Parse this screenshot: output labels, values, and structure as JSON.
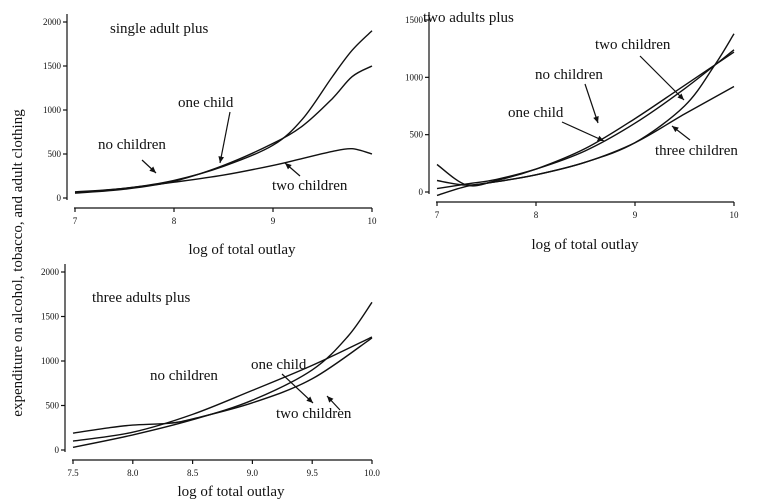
{
  "shared_ylabel": "expenditure on alcohol, tobacco, and adult clothing",
  "chart_data": [
    {
      "type": "line",
      "title": "single adult plus",
      "xlabel": "log of total outlay",
      "ylabel": "expenditure on alcohol, tobacco, and adult clothing",
      "xlim": [
        7,
        10
      ],
      "ylim": [
        0,
        2000
      ],
      "x_ticks": [
        "7",
        "8",
        "9",
        "10"
      ],
      "y_ticks": [
        "0",
        "500",
        "1000",
        "1500",
        "2000"
      ],
      "series": [
        {
          "name": "no children",
          "x": [
            7.0,
            7.5,
            8.0,
            8.5,
            9.0,
            9.3,
            9.6,
            9.8,
            10.0
          ],
          "y": [
            70,
            110,
            200,
            360,
            600,
            900,
            1380,
            1680,
            1900
          ]
        },
        {
          "name": "one child",
          "x": [
            7.0,
            7.5,
            8.0,
            8.5,
            9.0,
            9.3,
            9.6,
            9.8,
            10.0
          ],
          "y": [
            55,
            100,
            190,
            370,
            620,
            820,
            1130,
            1380,
            1500
          ]
        },
        {
          "name": "two children",
          "x": [
            7.0,
            7.5,
            8.0,
            8.5,
            9.0,
            9.3,
            9.6,
            9.8,
            10.0
          ],
          "y": [
            60,
            110,
            180,
            260,
            370,
            450,
            530,
            560,
            500
          ]
        }
      ],
      "annotations": [
        "no children",
        "one child",
        "two children"
      ]
    },
    {
      "type": "line",
      "title": "two adults plus",
      "xlabel": "log of total outlay",
      "xlim": [
        7,
        10
      ],
      "ylim": [
        0,
        1500
      ],
      "x_ticks": [
        "7",
        "8",
        "9",
        "10"
      ],
      "y_ticks": [
        "0",
        "500",
        "1000",
        "1500"
      ],
      "series": [
        {
          "name": "no children",
          "x": [
            7.0,
            7.3,
            7.6,
            8.0,
            8.5,
            9.0,
            9.5,
            10.0
          ],
          "y": [
            30,
            70,
            110,
            200,
            360,
            600,
            900,
            1240
          ]
        },
        {
          "name": "one child",
          "x": [
            7.0,
            7.3,
            7.6,
            8.0,
            8.5,
            9.0,
            9.5,
            10.0
          ],
          "y": [
            240,
            60,
            100,
            200,
            380,
            640,
            930,
            1220
          ]
        },
        {
          "name": "two children",
          "x": [
            7.0,
            7.3,
            7.6,
            8.0,
            8.5,
            9.0,
            9.5,
            9.8,
            10.0
          ],
          "y": [
            -30,
            50,
            90,
            150,
            260,
            430,
            750,
            1100,
            1380
          ]
        },
        {
          "name": "three children",
          "x": [
            7.0,
            7.3,
            7.6,
            8.0,
            8.5,
            9.0,
            9.5,
            10.0
          ],
          "y": [
            100,
            60,
            90,
            150,
            260,
            430,
            680,
            920
          ]
        }
      ],
      "annotations": [
        "two children",
        "no children",
        "one child",
        "three children"
      ]
    },
    {
      "type": "line",
      "title": "three adults plus",
      "xlabel": "log of total outlay",
      "xlim": [
        7.5,
        10
      ],
      "ylim": [
        0,
        2000
      ],
      "x_ticks": [
        "7.5",
        "8.0",
        "8.5",
        "9.0",
        "9.5",
        "10.0"
      ],
      "y_ticks": [
        "0",
        "500",
        "1000",
        "1500",
        "2000"
      ],
      "series": [
        {
          "name": "no children",
          "x": [
            7.5,
            8.0,
            8.5,
            9.0,
            9.5,
            10.0
          ],
          "y": [
            100,
            200,
            400,
            670,
            950,
            1270
          ]
        },
        {
          "name": "one child",
          "x": [
            7.5,
            8.0,
            8.5,
            9.0,
            9.5,
            9.8,
            10.0
          ],
          "y": [
            30,
            170,
            340,
            560,
            900,
            1280,
            1660
          ]
        },
        {
          "name": "two children",
          "x": [
            7.5,
            7.8,
            8.0,
            8.3,
            8.5,
            9.0,
            9.5,
            10.0
          ],
          "y": [
            190,
            250,
            280,
            300,
            350,
            530,
            800,
            1260
          ]
        }
      ],
      "annotations": [
        "one child",
        "no children",
        "two children"
      ]
    }
  ]
}
